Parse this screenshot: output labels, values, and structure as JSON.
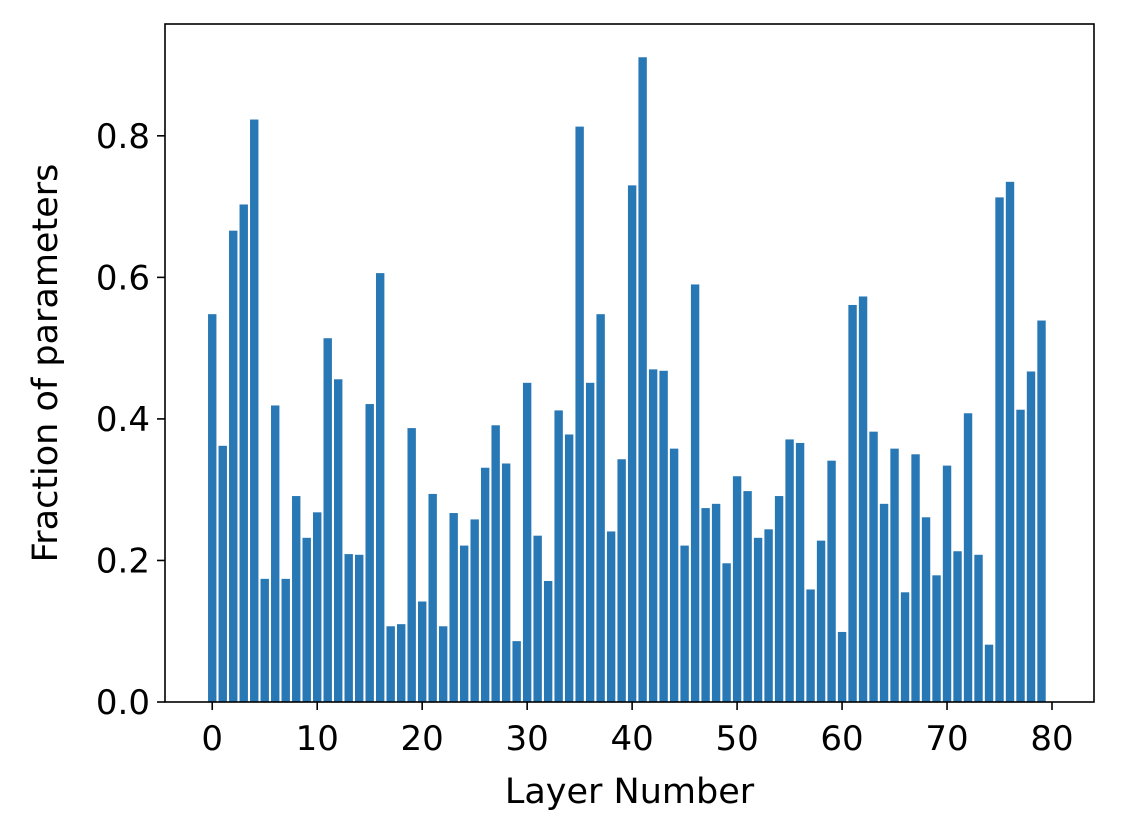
{
  "chart_data": {
    "type": "bar",
    "title": "",
    "xlabel": "Layer Number",
    "ylabel": "Fraction of parameters",
    "x": [
      0,
      1,
      2,
      3,
      4,
      5,
      6,
      7,
      8,
      9,
      10,
      11,
      12,
      13,
      14,
      15,
      16,
      17,
      18,
      19,
      20,
      21,
      22,
      23,
      24,
      25,
      26,
      27,
      28,
      29,
      30,
      31,
      32,
      33,
      34,
      35,
      36,
      37,
      38,
      39,
      40,
      41,
      42,
      43,
      44,
      45,
      46,
      47,
      48,
      49,
      50,
      51,
      52,
      53,
      54,
      55,
      56,
      57,
      58,
      59,
      60,
      61,
      62,
      63,
      64,
      65,
      66,
      67,
      68,
      69,
      70,
      71,
      72,
      73,
      74,
      75,
      76,
      77,
      78,
      79
    ],
    "values": [
      0.548,
      0.362,
      0.666,
      0.703,
      0.823,
      0.174,
      0.419,
      0.174,
      0.291,
      0.232,
      0.268,
      0.514,
      0.456,
      0.209,
      0.208,
      0.421,
      0.606,
      0.107,
      0.11,
      0.387,
      0.142,
      0.294,
      0.107,
      0.267,
      0.221,
      0.258,
      0.331,
      0.391,
      0.337,
      0.086,
      0.451,
      0.235,
      0.171,
      0.412,
      0.378,
      0.813,
      0.451,
      0.548,
      0.241,
      0.343,
      0.73,
      0.911,
      0.47,
      0.468,
      0.358,
      0.221,
      0.59,
      0.274,
      0.28,
      0.196,
      0.319,
      0.298,
      0.232,
      0.244,
      0.291,
      0.371,
      0.366,
      0.159,
      0.228,
      0.341,
      0.099,
      0.561,
      0.573,
      0.382,
      0.28,
      0.358,
      0.155,
      0.35,
      0.261,
      0.179,
      0.334,
      0.213,
      0.408,
      0.208,
      0.081,
      0.713,
      0.735,
      0.413,
      0.467,
      0.539
    ],
    "xticks": [
      0,
      10,
      20,
      30,
      40,
      50,
      60,
      70,
      80
    ],
    "xtick_labels": [
      "0",
      "10",
      "20",
      "30",
      "40",
      "50",
      "60",
      "70",
      "80"
    ],
    "yticks": [
      0.0,
      0.2,
      0.4,
      0.6,
      0.8
    ],
    "ytick_labels": [
      "0.0",
      "0.2",
      "0.4",
      "0.6",
      "0.8"
    ],
    "xlim": [
      -4.5,
      84.0
    ],
    "ylim": [
      0,
      0.958
    ],
    "grid": false,
    "legend": "none",
    "bar_color": "#2878b5"
  }
}
